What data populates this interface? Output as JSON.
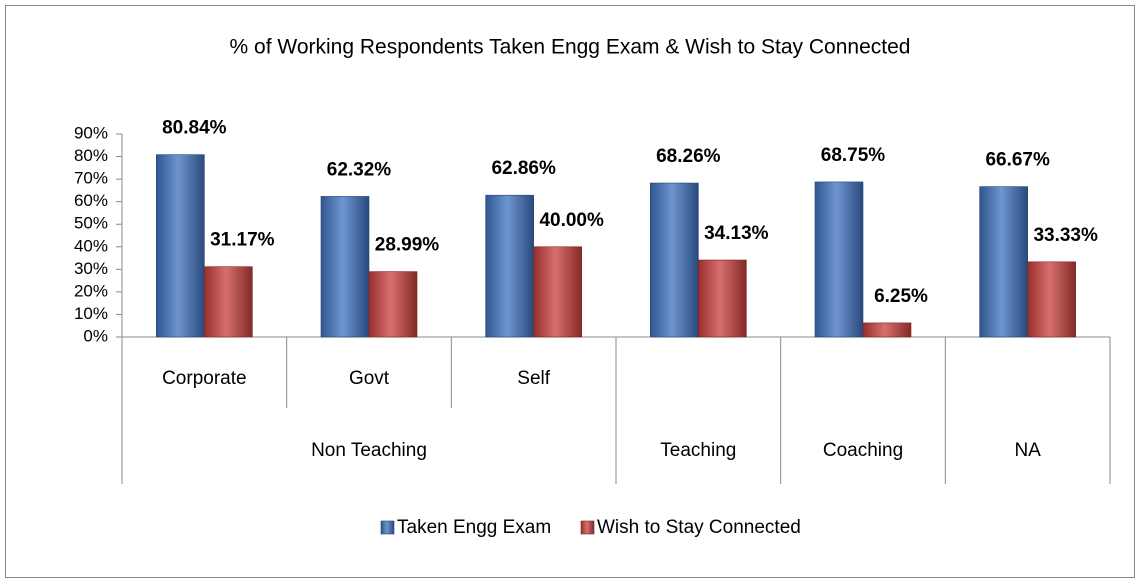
{
  "chart_data": {
    "type": "bar",
    "title": "% of Working Respondents Taken Engg Exam & Wish to Stay Connected",
    "groups": [
      {
        "label": "Non Teaching",
        "categories": [
          "Corporate",
          "Govt",
          "Self"
        ]
      },
      {
        "label": "Teaching",
        "categories": [
          null
        ]
      },
      {
        "label": "Coaching",
        "categories": [
          null
        ]
      },
      {
        "label": "NA",
        "categories": [
          null
        ]
      }
    ],
    "series": [
      {
        "name": "Taken Engg Exam",
        "color": "#3f72c0",
        "values": [
          80.84,
          62.32,
          62.86,
          68.26,
          68.75,
          66.67
        ],
        "value_labels": [
          "80.84%",
          "62.32%",
          "62.86%",
          "68.26%",
          "68.75%",
          "66.67%"
        ]
      },
      {
        "name": "Wish to Stay Connected",
        "color": "#c9403c",
        "values": [
          31.17,
          28.99,
          40.0,
          34.13,
          6.25,
          33.33
        ],
        "value_labels": [
          "31.17%",
          "28.99%",
          "40.00%",
          "34.13%",
          "6.25%",
          "33.33%"
        ]
      }
    ],
    "ylim": [
      0,
      90
    ],
    "yticks": [
      {
        "value": 0,
        "label": "0%"
      },
      {
        "value": 10,
        "label": "10%"
      },
      {
        "value": 20,
        "label": "20%"
      },
      {
        "value": 30,
        "label": "30%"
      },
      {
        "value": 40,
        "label": "40%"
      },
      {
        "value": 50,
        "label": "50%"
      },
      {
        "value": 60,
        "label": "60%"
      },
      {
        "value": 70,
        "label": "70%"
      },
      {
        "value": 80,
        "label": "80%"
      },
      {
        "value": 90,
        "label": "90%"
      }
    ],
    "legend": "bottom"
  }
}
